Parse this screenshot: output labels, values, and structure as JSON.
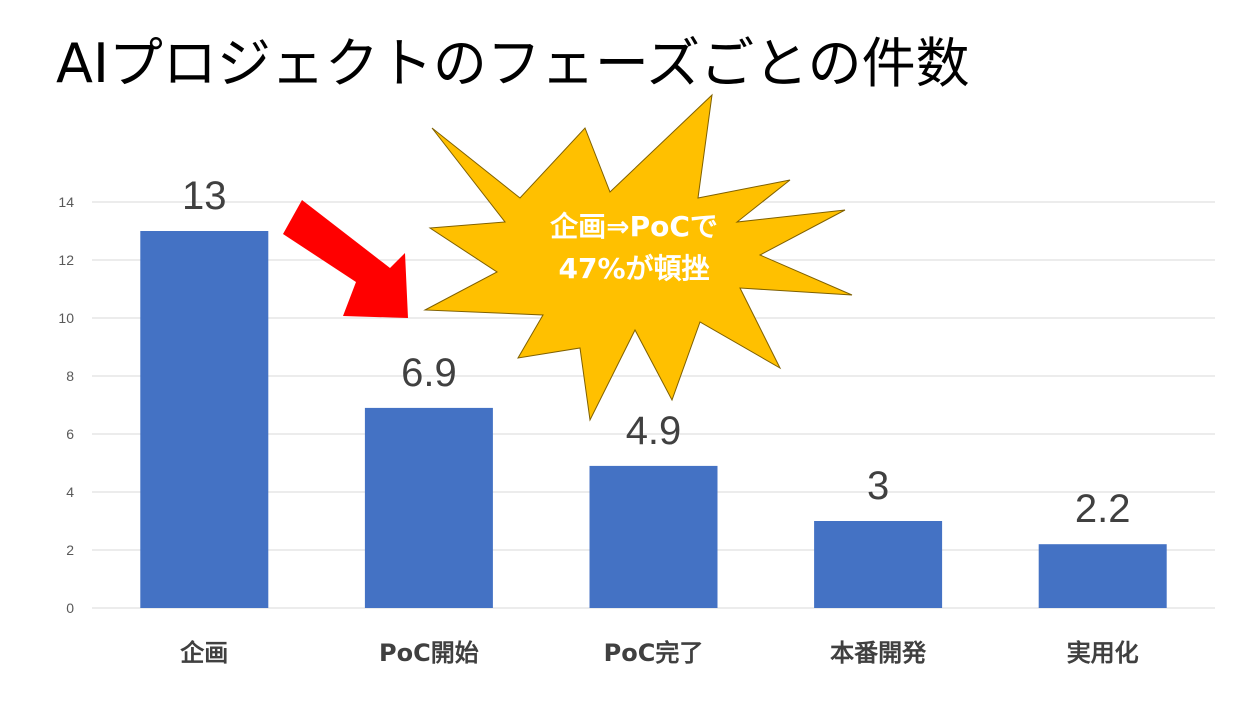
{
  "title": "AIプロジェクトのフェーズごとの件数",
  "chart_data": {
    "type": "bar",
    "categories": [
      "企画",
      "PoC開始",
      "PoC完了",
      "本番開発",
      "実用化"
    ],
    "values": [
      13,
      6.9,
      4.9,
      3,
      2.2
    ],
    "data_labels": [
      "13",
      "6.9",
      "4.9",
      "3",
      "2.2"
    ],
    "y_ticks": [
      0,
      2,
      4,
      6,
      8,
      10,
      12,
      14
    ],
    "ylim": [
      0,
      14
    ],
    "grid": true,
    "xlabel": "",
    "ylabel": "",
    "bar_color": "#4472C4"
  },
  "annotations": {
    "callout_lines": [
      "企画⇒PoCで",
      "47%が頓挫"
    ],
    "callout_color": "#FFC000",
    "arrow_color": "#FF0000"
  }
}
